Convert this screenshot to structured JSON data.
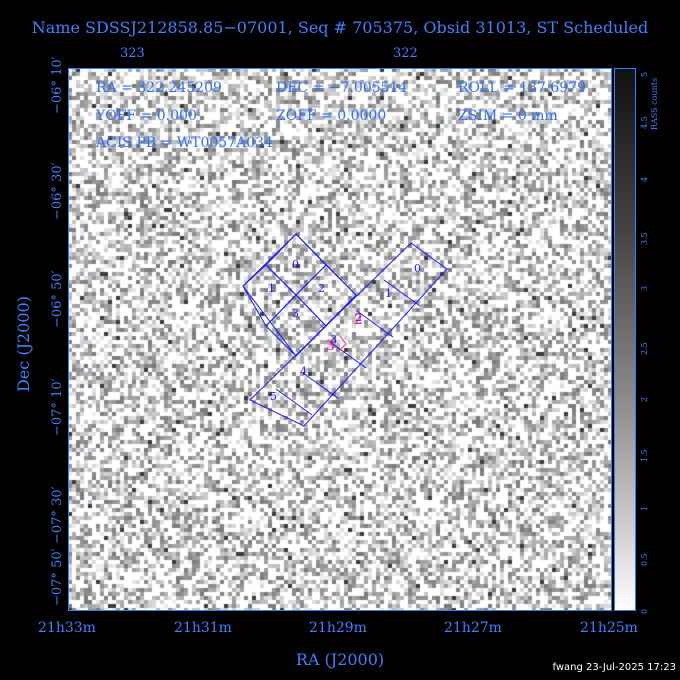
{
  "title": "Name SDSSJ212858.85−07001, Seq # 705375, Obsid 31013, ST Scheduled",
  "top_axis": {
    "ticks": [
      "323",
      "322"
    ]
  },
  "x_axis": {
    "label": "RA (J2000)",
    "ticks": [
      "21h33m",
      "21h31m",
      "21h29m",
      "21h27m",
      "21h25m"
    ]
  },
  "y_axis": {
    "label": "Dec (J2000)",
    "ticks": [
      "−06° 10′",
      "−06° 30′",
      "−06° 50′",
      "−07° 10′",
      "−07° 30′",
      "−07° 50′"
    ]
  },
  "info": {
    "ra": "RA = 322.245209",
    "dec": "DEC = −7.005514",
    "roll": "ROLL = 137.6979",
    "yoff": "YOFF = 0.000′",
    "zoff": "ZOFF = 0.0000′",
    "zsim": "ZSIM = 0 mm",
    "acis": "ACIS PB = WT0057A034"
  },
  "chips": {
    "acis_i": [
      "0",
      "1",
      "2",
      "3"
    ],
    "acis_s": [
      "0",
      "1",
      "2",
      "3",
      "4",
      "5"
    ]
  },
  "colorbar": {
    "title": "RASS counts",
    "ticks": [
      "0",
      "0.5",
      "1",
      "1.5",
      "2",
      "2.5",
      "3",
      "3.5",
      "4",
      "4.5",
      "5"
    ],
    "colors": {
      "low": "#ffffff",
      "high": "#000000"
    }
  },
  "colors": {
    "axis": "#2f7fff",
    "chips": "#1a1aff",
    "aimpoint": "#ff1a8c",
    "background": "#000000"
  },
  "footer": "fwang 23-Jul-2025 17:23"
}
